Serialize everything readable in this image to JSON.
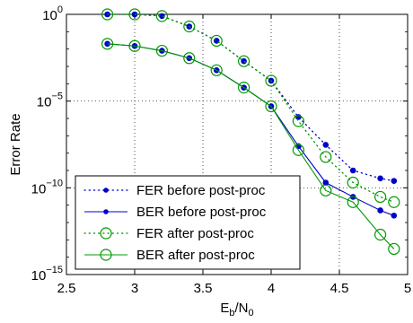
{
  "chart_data": {
    "type": "line",
    "xlabel_main": "E",
    "xlabel_sub1": "b",
    "xlabel_mid": "/N",
    "xlabel_sub2": "0",
    "ylabel": "Error Rate",
    "xlim": [
      2.5,
      5
    ],
    "ylim_log10": [
      -15,
      0
    ],
    "y_scale": "log",
    "grid": "dotted",
    "legend_placement": "bottom-left",
    "x_ticks": [
      {
        "v": 2.5,
        "label": "2.5"
      },
      {
        "v": 3,
        "label": "3"
      },
      {
        "v": 3.5,
        "label": "3.5"
      },
      {
        "v": 4,
        "label": "4"
      },
      {
        "v": 4.5,
        "label": "4.5"
      },
      {
        "v": 5,
        "label": "5"
      }
    ],
    "y_ticks": [
      {
        "exp": 0,
        "base": "10",
        "sup": "0"
      },
      {
        "exp": -5,
        "base": "10",
        "sup": "−5"
      },
      {
        "exp": -10,
        "base": "10",
        "sup": "−10"
      },
      {
        "exp": -15,
        "base": "10",
        "sup": "−15"
      }
    ],
    "x": [
      2.8,
      3.0,
      3.2,
      3.4,
      3.6,
      3.8,
      4.0,
      4.2,
      4.4,
      4.6,
      4.8,
      4.9
    ],
    "series": [
      {
        "name": "FER before post-proc",
        "color": "#0000cc",
        "line": "dotted",
        "marker": "dot",
        "values": [
          1.0,
          1.0,
          0.8,
          0.2,
          0.03,
          0.002,
          0.00015,
          1.2e-06,
          3e-08,
          1e-09,
          3.5e-10,
          2.5e-10
        ]
      },
      {
        "name": "BER before post-proc",
        "color": "#0000cc",
        "line": "solid",
        "marker": "dot",
        "values": [
          0.02,
          0.015,
          0.008,
          0.003,
          0.0006,
          6e-05,
          5e-06,
          2.5e-08,
          2e-10,
          3e-11,
          5e-12,
          2.5e-12
        ]
      },
      {
        "name": "FER after post-proc",
        "color": "#009900",
        "line": "dotted",
        "marker": "circle",
        "values": [
          1.0,
          1.0,
          0.8,
          0.2,
          0.03,
          0.002,
          0.00015,
          7e-07,
          6e-09,
          2e-10,
          3e-11,
          1.5e-11
        ]
      },
      {
        "name": "BER after post-proc",
        "color": "#009900",
        "line": "solid",
        "marker": "circle",
        "values": [
          0.02,
          0.015,
          0.008,
          0.003,
          0.0006,
          6e-05,
          5e-06,
          1.5e-08,
          7e-11,
          1.5e-11,
          2e-13,
          3e-14
        ]
      }
    ]
  }
}
